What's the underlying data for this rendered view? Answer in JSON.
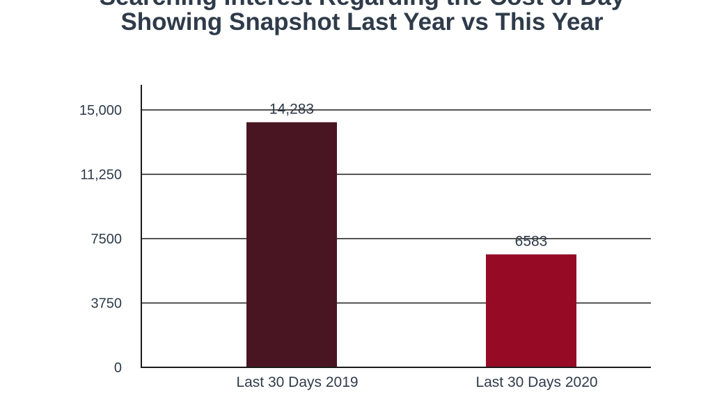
{
  "chart_data": {
    "type": "bar",
    "title_lines": [
      "Searching Interest Regarding the Cost of Day",
      "Showing Snapshot Last Year vs This Year"
    ],
    "categories": [
      "Last 30 Days 2019",
      "Last 30 Days 2020"
    ],
    "values": [
      14283,
      6583
    ],
    "value_labels": [
      "14,283",
      "6583"
    ],
    "bar_colors": [
      "#4a1522",
      "#960a26"
    ],
    "y_ticks": [
      0,
      3750,
      7500,
      11250,
      15000
    ],
    "y_tick_labels": [
      "0",
      "3750",
      "7500",
      "11,250",
      "15,000"
    ],
    "ylim": [
      0,
      15000
    ],
    "xlabel": "",
    "ylabel": "",
    "grid": true,
    "colors": {
      "text": "#2f3b4a",
      "axis": "#1a1a1a",
      "grid": "#1a1a1a"
    }
  }
}
